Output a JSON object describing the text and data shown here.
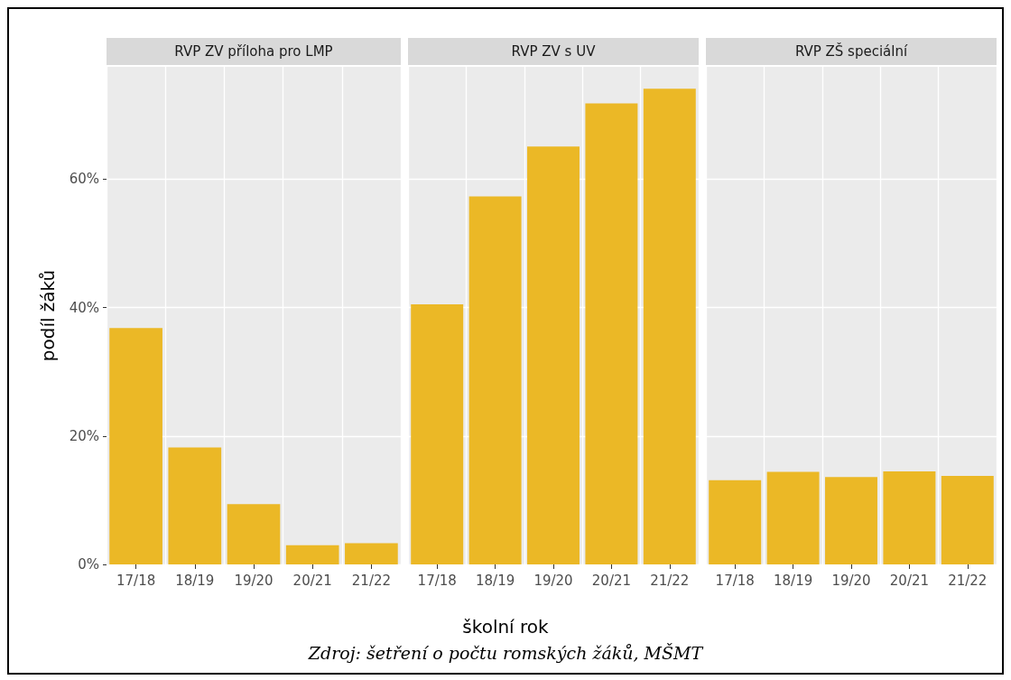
{
  "chart_data": [
    {
      "type": "bar",
      "title": "RVP ZV příloha pro LMP",
      "ylabel": "podíl žáků",
      "categories": [
        "17/18",
        "18/19",
        "19/20",
        "20/21",
        "21/22"
      ],
      "values": [
        36.8,
        18.2,
        9.4,
        3.0,
        3.3
      ],
      "color": "#ebb826",
      "ylim": [
        0,
        77.5
      ],
      "yticks": [
        {
          "value": 0,
          "label": "0%"
        },
        {
          "value": 20,
          "label": "20%"
        },
        {
          "value": 40,
          "label": "40%"
        },
        {
          "value": 60,
          "label": "60%"
        }
      ],
      "grid": true
    },
    {
      "type": "bar",
      "title": "RVP ZV s UV",
      "xlabel": "školní rok",
      "annotations": [
        "Zdroj: šetření o počtu romských žáků, MŠMT"
      ],
      "categories": [
        "17/18",
        "18/19",
        "19/20",
        "20/21",
        "21/22"
      ],
      "values": [
        40.5,
        57.3,
        65.1,
        71.8,
        74.1
      ],
      "color": "#ebb826",
      "ylim": [
        0,
        77.5
      ],
      "yticks": [
        0,
        20,
        40,
        60
      ],
      "grid": true,
      "tick_labels": "x"
    },
    {
      "type": "bar",
      "title": "RVP ZŠ speciální",
      "categories": [
        "17/18",
        "18/19",
        "19/20",
        "20/21",
        "21/22"
      ],
      "values": [
        13.1,
        14.4,
        13.6,
        14.5,
        13.8
      ],
      "color": "#ebb826",
      "ylim": [
        0,
        77.5
      ],
      "yticks": [
        0,
        20,
        40,
        60
      ],
      "grid": true,
      "tick_labels": "x"
    }
  ]
}
